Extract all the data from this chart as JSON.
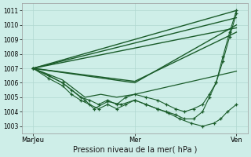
{
  "title": "Pression niveau de la mer( hPa )",
  "bg_color": "#ceeee8",
  "grid_color": "#b0d8d0",
  "line_color": "#1a5c2a",
  "ylim": [
    1002.5,
    1011.5
  ],
  "yticks": [
    1003,
    1004,
    1005,
    1006,
    1007,
    1008,
    1009,
    1010,
    1011
  ],
  "xtick_labels": [
    "MarJeu",
    "Mer",
    "Ven"
  ],
  "xtick_positions": [
    0.05,
    0.5,
    0.95
  ],
  "series": [
    {
      "x": [
        0.05,
        0.95
      ],
      "y": [
        1007.0,
        1011.0
      ],
      "marker": false,
      "lw": 1.0
    },
    {
      "x": [
        0.05,
        0.95
      ],
      "y": [
        1007.0,
        1010.5
      ],
      "marker": false,
      "lw": 1.0
    },
    {
      "x": [
        0.05,
        0.95
      ],
      "y": [
        1007.0,
        1009.8
      ],
      "marker": false,
      "lw": 1.0
    },
    {
      "x": [
        0.05,
        0.5,
        0.95
      ],
      "y": [
        1007.0,
        1006.0,
        1010.0
      ],
      "marker": false,
      "lw": 1.0
    },
    {
      "x": [
        0.05,
        0.5,
        0.95
      ],
      "y": [
        1007.0,
        1006.1,
        1009.5
      ],
      "marker": false,
      "lw": 1.0
    },
    {
      "x": [
        0.05,
        0.18,
        0.28,
        0.35,
        0.42,
        0.5,
        0.95
      ],
      "y": [
        1007.0,
        1006.2,
        1005.0,
        1005.2,
        1005.0,
        1005.2,
        1006.8
      ],
      "marker": false,
      "lw": 0.9
    },
    {
      "x": [
        0.05,
        0.18,
        0.28,
        0.32,
        0.38,
        0.44,
        0.5,
        0.55,
        0.6,
        0.65,
        0.7,
        0.75,
        0.8,
        0.85,
        0.88,
        0.91,
        0.95
      ],
      "y": [
        1007.0,
        1006.0,
        1004.8,
        1004.2,
        1004.7,
        1004.5,
        1004.8,
        1004.5,
        1004.2,
        1003.9,
        1003.5,
        1003.2,
        1003.0,
        1003.2,
        1003.5,
        1004.0,
        1004.5
      ],
      "marker": true,
      "lw": 0.8
    },
    {
      "x": [
        0.05,
        0.12,
        0.18,
        0.22,
        0.26,
        0.3,
        0.34,
        0.38,
        0.42,
        0.46,
        0.5,
        0.55,
        0.6,
        0.64,
        0.68,
        0.72,
        0.76,
        0.8,
        0.83,
        0.86,
        0.89,
        0.92,
        0.95
      ],
      "y": [
        1007.0,
        1006.5,
        1006.0,
        1005.5,
        1005.0,
        1004.8,
        1004.5,
        1004.8,
        1004.5,
        1005.0,
        1005.2,
        1005.0,
        1004.8,
        1004.5,
        1004.2,
        1004.0,
        1004.2,
        1004.5,
        1005.2,
        1006.0,
        1007.5,
        1009.2,
        1010.8
      ],
      "marker": true,
      "lw": 0.8
    },
    {
      "x": [
        0.05,
        0.12,
        0.18,
        0.22,
        0.26,
        0.3,
        0.34,
        0.38,
        0.42,
        0.46,
        0.5,
        0.55,
        0.6,
        0.64,
        0.68,
        0.72,
        0.76,
        0.8,
        0.83,
        0.86,
        0.89,
        0.92,
        0.95
      ],
      "y": [
        1007.0,
        1006.3,
        1005.8,
        1005.2,
        1004.8,
        1004.5,
        1004.2,
        1004.5,
        1004.2,
        1004.5,
        1004.8,
        1004.5,
        1004.2,
        1004.0,
        1003.8,
        1003.5,
        1003.5,
        1004.0,
        1005.0,
        1006.0,
        1007.8,
        1009.5,
        1011.0
      ],
      "marker": true,
      "lw": 0.8
    }
  ]
}
